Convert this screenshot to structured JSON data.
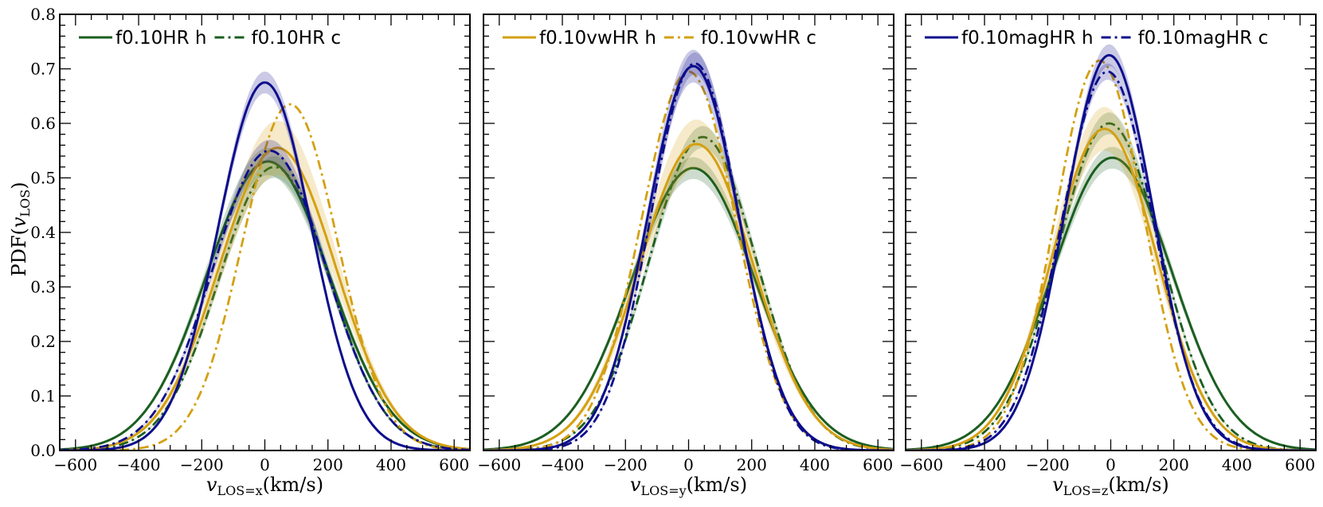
{
  "figure": {
    "ylabel": "PDF(v_LOS)",
    "ylabel_main": "PDF(",
    "ylabel_var": "v",
    "ylabel_sub": "LOS",
    "ylabel_close": ")"
  },
  "colors": {
    "green": "#1b5e20",
    "gold": "#d4a012",
    "blue": "#0d0d8c"
  },
  "chart_data": [
    {
      "type": "line",
      "xlabel": "v_LOS=x(km/s)",
      "xlabel_var": "v",
      "xlabel_sub": "LOS=x",
      "xlabel_unit": "(km/s)",
      "ylabel": "PDF(v_LOS)",
      "xlim": [
        -650,
        650
      ],
      "ylim": [
        0,
        0.8
      ],
      "xticks": [
        -600,
        -400,
        -200,
        0,
        200,
        400,
        600
      ],
      "xtick_labels": [
        "−600",
        "−400",
        "−200",
        "0",
        "200",
        "400",
        "600"
      ],
      "yticks": [
        0.0,
        0.1,
        0.2,
        0.3,
        0.4,
        0.5,
        0.6,
        0.7,
        0.8
      ],
      "ytick_labels": [
        "0.0",
        "0.1",
        "0.2",
        "0.3",
        "0.4",
        "0.5",
        "0.6",
        "0.7",
        "0.8"
      ],
      "legend_position": "top-left",
      "legend": [
        {
          "label": "f0.10HR h",
          "color": "green",
          "style": "solid"
        },
        {
          "label": "f0.10HR c",
          "color": "green",
          "style": "dashdot"
        }
      ],
      "series": [
        {
          "name": "f0.10HR h",
          "color": "green",
          "style": "solid",
          "peak": 0.53,
          "mu": 10,
          "sigma": 195,
          "band": 0.025
        },
        {
          "name": "f0.10HR c",
          "color": "green",
          "style": "dashdot",
          "peak": 0.52,
          "mu": 30,
          "sigma": 175,
          "band": 0.02
        },
        {
          "color": "gold",
          "style": "solid",
          "peak": 0.555,
          "mu": 40,
          "sigma": 185,
          "band": 0.05
        },
        {
          "color": "gold",
          "style": "dashdot",
          "peak": 0.635,
          "mu": 80,
          "sigma": 150,
          "band": 0.0
        },
        {
          "color": "blue",
          "style": "solid",
          "peak": 0.675,
          "mu": 0,
          "sigma": 148,
          "band": 0.02
        },
        {
          "color": "blue",
          "style": "dashdot",
          "peak": 0.55,
          "mu": 15,
          "sigma": 180,
          "band": 0.02
        }
      ]
    },
    {
      "type": "line",
      "xlabel": "v_LOS=y(km/s)",
      "xlabel_var": "v",
      "xlabel_sub": "LOS=y",
      "xlabel_unit": "(km/s)",
      "xlim": [
        -650,
        650
      ],
      "ylim": [
        0,
        0.8
      ],
      "xticks": [
        -600,
        -400,
        -200,
        0,
        200,
        400,
        600
      ],
      "xtick_labels": [
        "−600",
        "−400",
        "−200",
        "0",
        "200",
        "400",
        "600"
      ],
      "yticks": [
        0.0,
        0.1,
        0.2,
        0.3,
        0.4,
        0.5,
        0.6,
        0.7,
        0.8
      ],
      "legend_position": "top-left",
      "legend": [
        {
          "label": "f0.10vwHR h",
          "color": "gold",
          "style": "solid"
        },
        {
          "label": "f0.10vwHR c",
          "color": "gold",
          "style": "dashdot"
        }
      ],
      "series": [
        {
          "color": "green",
          "style": "solid",
          "peak": 0.518,
          "mu": 15,
          "sigma": 195,
          "band": 0.02
        },
        {
          "color": "green",
          "style": "dashdot",
          "peak": 0.575,
          "mu": 45,
          "sigma": 170,
          "band": 0.02
        },
        {
          "name": "f0.10vwHR h",
          "color": "gold",
          "style": "solid",
          "peak": 0.562,
          "mu": 25,
          "sigma": 180,
          "band": 0.045
        },
        {
          "name": "f0.10vwHR c",
          "color": "gold",
          "style": "dashdot",
          "peak": 0.695,
          "mu": 0,
          "sigma": 150,
          "band": 0.0
        },
        {
          "color": "blue",
          "style": "solid",
          "peak": 0.705,
          "mu": 15,
          "sigma": 145,
          "band": 0.03
        },
        {
          "color": "blue",
          "style": "dashdot",
          "peak": 0.71,
          "mu": 20,
          "sigma": 140,
          "band": 0.02
        }
      ]
    },
    {
      "type": "line",
      "xlabel": "v_LOS=z(km/s)",
      "xlabel_var": "v",
      "xlabel_sub": "LOS=z",
      "xlabel_unit": "(km/s)",
      "xlim": [
        -650,
        650
      ],
      "ylim": [
        0,
        0.8
      ],
      "xticks": [
        -600,
        -400,
        -200,
        0,
        200,
        400,
        600
      ],
      "xtick_labels": [
        "−600",
        "−400",
        "−200",
        "0",
        "200",
        "400",
        "600"
      ],
      "yticks": [
        0.0,
        0.1,
        0.2,
        0.3,
        0.4,
        0.5,
        0.6,
        0.7,
        0.8
      ],
      "legend_position": "top-left",
      "legend": [
        {
          "label": "f0.10magHR h",
          "color": "blue",
          "style": "solid"
        },
        {
          "label": "f0.10magHR c",
          "color": "blue",
          "style": "dashdot"
        }
      ],
      "series": [
        {
          "color": "green",
          "style": "solid",
          "peak": 0.537,
          "mu": 5,
          "sigma": 190,
          "band": 0.02
        },
        {
          "color": "green",
          "style": "dashdot",
          "peak": 0.6,
          "mu": -5,
          "sigma": 165,
          "band": 0.02
        },
        {
          "color": "gold",
          "style": "solid",
          "peak": 0.59,
          "mu": -20,
          "sigma": 165,
          "band": 0.04
        },
        {
          "color": "gold",
          "style": "dashdot",
          "peak": 0.715,
          "mu": -35,
          "sigma": 140,
          "band": 0.0
        },
        {
          "name": "f0.10magHR h",
          "color": "blue",
          "style": "solid",
          "peak": 0.725,
          "mu": -5,
          "sigma": 140,
          "band": 0.02
        },
        {
          "name": "f0.10magHR c",
          "color": "blue",
          "style": "dashdot",
          "peak": 0.695,
          "mu": -10,
          "sigma": 145,
          "band": 0.015
        }
      ]
    }
  ]
}
